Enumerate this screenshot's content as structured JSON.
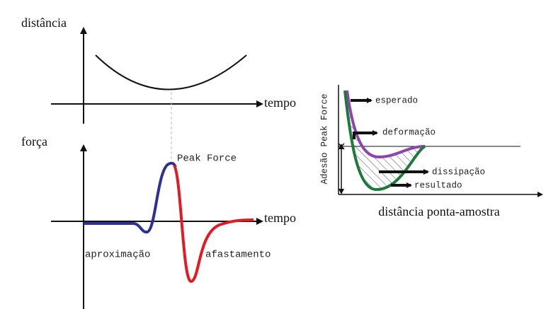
{
  "top_plot": {
    "y_label": "distância",
    "x_label": "tempo"
  },
  "bottom_plot": {
    "y_label": "força",
    "x_label": "tempo",
    "peak": "Peak Force",
    "approach": "aproximação",
    "retract": "afastamento"
  },
  "right_plot": {
    "x_label": "distância ponta-amostra",
    "y_label_top": "Peak Force",
    "y_label_bottom": "Adesão",
    "annotations": [
      "esperado",
      "deformação",
      "dissipação",
      "resultado"
    ]
  }
}
